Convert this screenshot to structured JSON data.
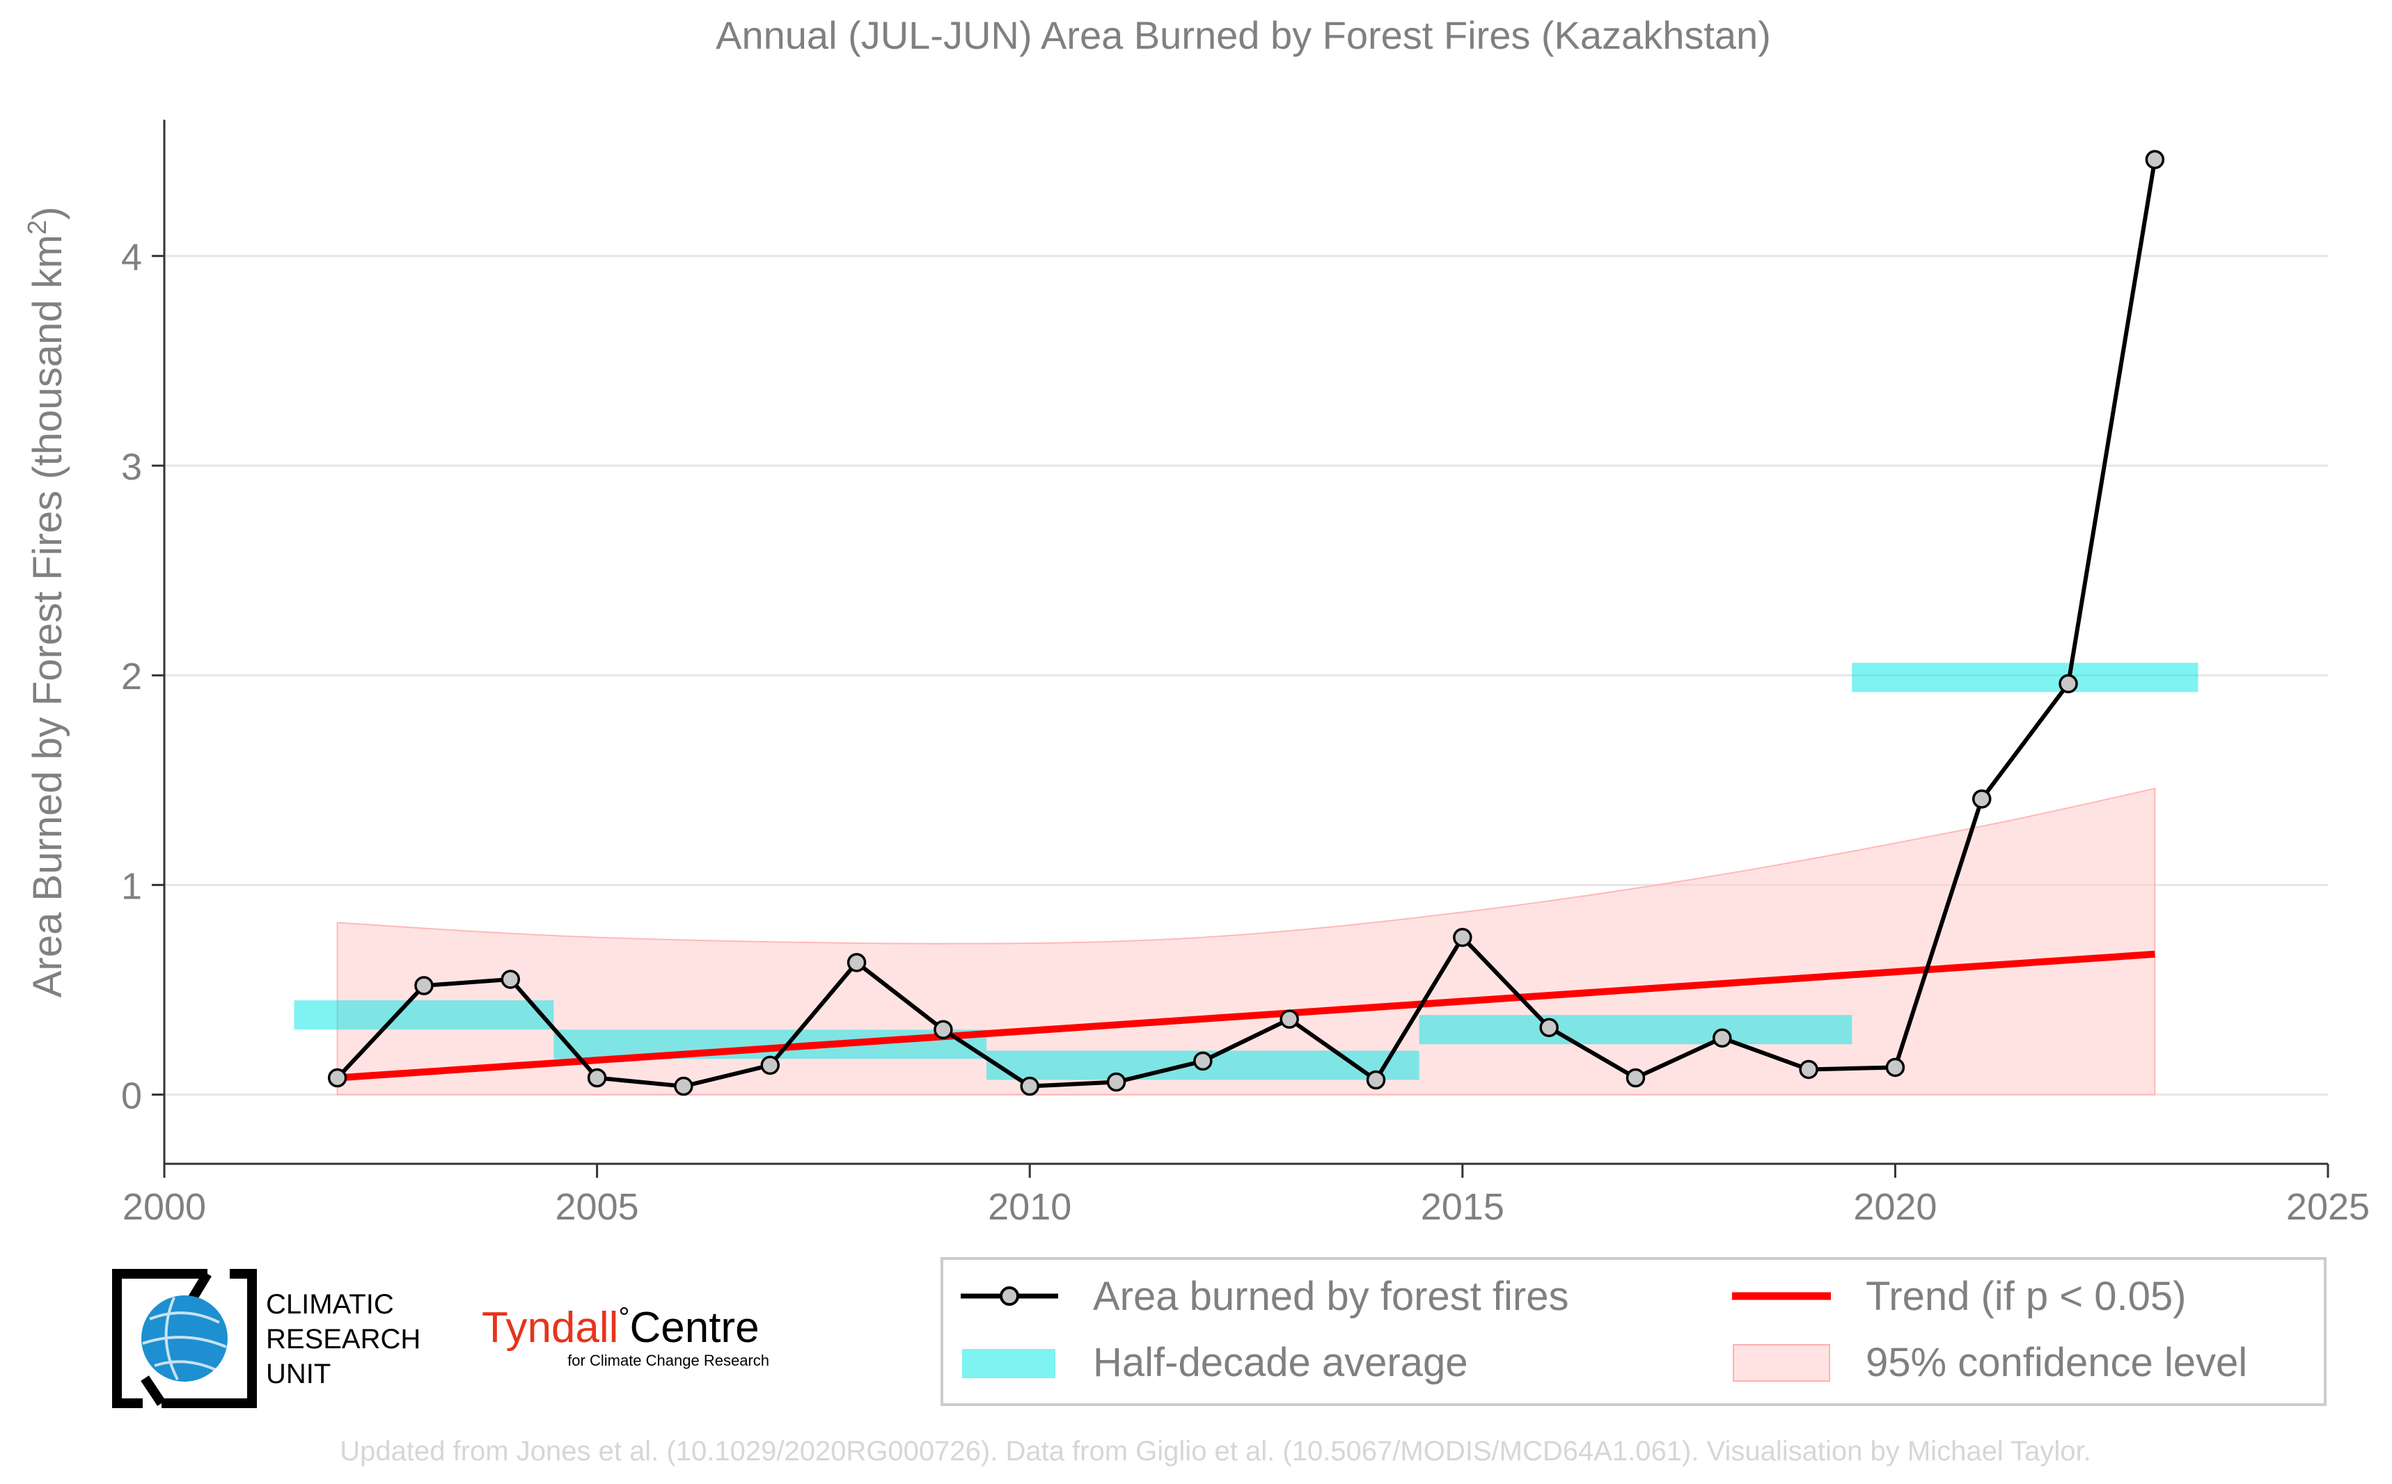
{
  "chart_data": {
    "type": "line",
    "title": "Annual (JUL-JUN) Area Burned by Forest Fires (Kazakhstan)",
    "xlabel": "",
    "ylabel_main": "Area Burned by Forest Fires (thousand km",
    "ylabel_sup": "2",
    "ylabel_close": ")",
    "xlim": [
      2000,
      2025
    ],
    "ylim": [
      -0.33,
      4.65
    ],
    "xticks": [
      2000,
      2005,
      2010,
      2015,
      2020,
      2025
    ],
    "yticks": [
      0,
      1,
      2,
      3,
      4
    ],
    "grid": "horizontal",
    "legend_position": "bottom-right",
    "series": [
      {
        "name": "Area burned by forest fires",
        "type": "line",
        "color": "#000000",
        "marker_fill": "#c8c8c8",
        "x": [
          2002,
          2003,
          2004,
          2005,
          2006,
          2007,
          2008,
          2009,
          2010,
          2011,
          2012,
          2013,
          2014,
          2015,
          2016,
          2017,
          2018,
          2019,
          2020,
          2021,
          2022,
          2023
        ],
        "y": [
          0.08,
          0.52,
          0.55,
          0.08,
          0.04,
          0.14,
          0.63,
          0.31,
          0.04,
          0.06,
          0.16,
          0.36,
          0.07,
          0.75,
          0.32,
          0.08,
          0.27,
          0.12,
          0.13,
          1.41,
          1.96,
          4.46
        ]
      },
      {
        "name": "Half-decade average",
        "type": "step-bars",
        "color": "#00e5e5",
        "segments": [
          {
            "x0": 2001.5,
            "x1": 2004.5,
            "y": 0.38
          },
          {
            "x0": 2004.5,
            "x1": 2009.5,
            "y": 0.24
          },
          {
            "x0": 2009.5,
            "x1": 2014.5,
            "y": 0.14
          },
          {
            "x0": 2014.5,
            "x1": 2019.5,
            "y": 0.31
          },
          {
            "x0": 2019.5,
            "x1": 2023.5,
            "y": 1.99
          }
        ]
      },
      {
        "name": "Trend (if p < 0.05)",
        "type": "line",
        "color": "#ff0000",
        "x": [
          2002,
          2023
        ],
        "y": [
          0.08,
          0.67
        ]
      },
      {
        "name": "95% confidence level",
        "type": "area",
        "color": "#ffcccc",
        "x": [
          2002,
          2005,
          2009,
          2012,
          2015,
          2018,
          2021,
          2023
        ],
        "upper": [
          0.82,
          0.75,
          0.72,
          0.75,
          0.87,
          1.05,
          1.28,
          1.46
        ],
        "lower": [
          0,
          0,
          0,
          0,
          0,
          0,
          0,
          0
        ]
      }
    ]
  },
  "logos": {
    "cru_lines": [
      "CLIMATIC",
      "RESEARCH",
      "UNIT"
    ],
    "tyndall_main": "Tyndall",
    "tyndall_degree": "°",
    "tyndall_centre": "Centre",
    "tyndall_sub": "for Climate Change Research"
  },
  "footer": "Updated from Jones et al. (10.1029/2020RG000726). Data from Giglio et al. (10.5067/MODIS/MCD64A1.061). Visualisation by Michael Taylor.",
  "colors": {
    "text_gray": "#808080",
    "grid": "#e6e6e6",
    "footer": "#d6d6d6",
    "tyndall_red": "#e8331c",
    "cru_blue": "#1e8fd0"
  }
}
